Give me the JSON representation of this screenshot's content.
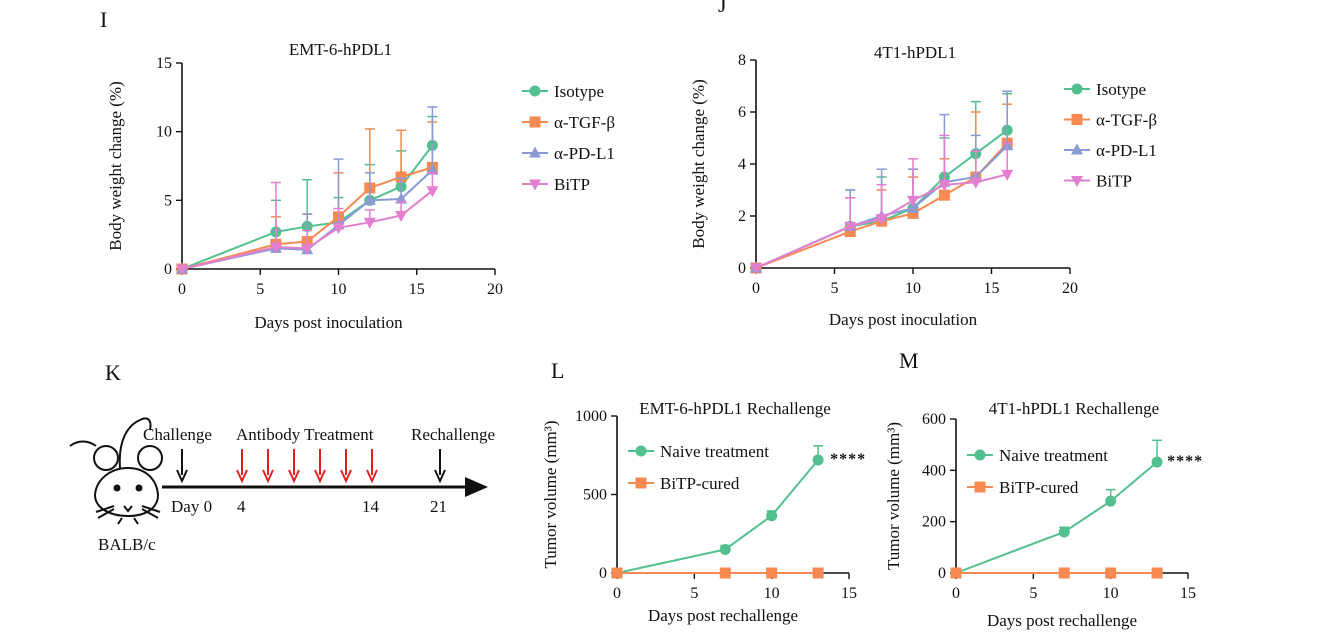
{
  "panels": {
    "I": "I",
    "J": "J",
    "K": "K",
    "L": "L",
    "M": "M"
  },
  "colors": {
    "isotype": "#52c08e",
    "tgf": "#f68a52",
    "pdl1": "#8a9ad4",
    "bitp": "#e27fcf",
    "arrow_red": "#e31e1e",
    "axis": "#111111"
  },
  "schedule": {
    "challenge_label": "Challenge",
    "treatment_label": "Antibody Treatment",
    "rechallenge_label": "Rechallenge",
    "day0_label": "Day 0",
    "day4_label": "4",
    "day14_label": "14",
    "day21_label": "21",
    "mouse_label": "BALB/c",
    "mouse_icon": "mouse-icon"
  },
  "chart_data": [
    {
      "id": "I",
      "type": "line",
      "title": "EMT-6-hPDL1",
      "xlabel": "Days post inoculation",
      "ylabel": "Body weight change (%)",
      "xlim": [
        0,
        20
      ],
      "ylim": [
        0,
        15
      ],
      "xticks": [
        0,
        5,
        10,
        15,
        20
      ],
      "yticks": [
        0,
        5,
        10,
        15
      ],
      "x": [
        0,
        6,
        8,
        10,
        12,
        14,
        16
      ],
      "series": [
        {
          "name": "Isotype",
          "color": "#52c08e",
          "marker": "circle",
          "values": [
            0,
            2.7,
            3.1,
            3.4,
            5.0,
            6.0,
            9.0
          ],
          "errors": [
            0,
            2.3,
            3.4,
            1.8,
            2.6,
            2.6,
            2.1
          ]
        },
        {
          "name": "α-TGF-β",
          "color": "#f68a52",
          "marker": "square",
          "values": [
            0,
            1.8,
            2.0,
            3.8,
            5.9,
            6.7,
            7.4
          ],
          "errors": [
            0,
            2.0,
            2.0,
            3.2,
            4.3,
            3.4,
            3.3
          ]
        },
        {
          "name": "α-PD-L1",
          "color": "#8a9ad4",
          "marker": "triangle-up",
          "values": [
            0,
            1.5,
            1.4,
            3.2,
            5.0,
            5.1,
            7.2
          ],
          "errors": [
            0,
            1.3,
            2.6,
            4.8,
            2.0,
            1.5,
            4.6
          ]
        },
        {
          "name": "BiTP",
          "color": "#e27fcf",
          "marker": "triangle-down",
          "values": [
            0,
            1.6,
            1.5,
            3.0,
            3.4,
            3.9,
            5.7
          ],
          "errors": [
            0,
            4.7,
            1.3,
            1.4,
            0.9,
            1.0,
            1.3
          ]
        }
      ]
    },
    {
      "id": "J",
      "type": "line",
      "title": "4T1-hPDL1",
      "xlabel": "Days post inoculation",
      "ylabel": "Body weight change (%)",
      "xlim": [
        0,
        20
      ],
      "ylim": [
        0,
        8
      ],
      "xticks": [
        0,
        5,
        10,
        15,
        20
      ],
      "yticks": [
        0,
        2,
        4,
        6,
        8
      ],
      "x": [
        0,
        6,
        8,
        10,
        12,
        14,
        16
      ],
      "series": [
        {
          "name": "Isotype",
          "color": "#52c08e",
          "marker": "circle",
          "values": [
            0,
            1.6,
            1.8,
            2.3,
            3.5,
            4.4,
            5.3
          ],
          "errors": [
            0,
            1.4,
            1.7,
            1.5,
            1.5,
            2.0,
            1.4
          ]
        },
        {
          "name": "α-TGF-β",
          "color": "#f68a52",
          "marker": "square",
          "values": [
            0,
            1.4,
            1.8,
            2.1,
            2.8,
            3.5,
            4.8
          ],
          "errors": [
            0,
            1.3,
            1.2,
            1.4,
            1.4,
            2.5,
            1.5
          ]
        },
        {
          "name": "α-PD-L1",
          "color": "#8a9ad4",
          "marker": "triangle-up",
          "values": [
            0,
            1.6,
            2.0,
            2.3,
            3.3,
            3.5,
            4.7
          ],
          "errors": [
            0,
            1.4,
            1.8,
            1.5,
            2.6,
            1.6,
            2.1
          ]
        },
        {
          "name": "BiTP",
          "color": "#e27fcf",
          "marker": "triangle-down",
          "values": [
            0,
            1.6,
            1.9,
            2.6,
            3.2,
            3.3,
            3.6
          ],
          "errors": [
            0,
            1.1,
            1.3,
            1.6,
            1.9,
            1.2,
            1.2
          ]
        }
      ]
    },
    {
      "id": "L",
      "type": "line",
      "title": "EMT-6-hPDL1 Rechallenge",
      "xlabel": "Days post rechallenge",
      "ylabel": "Tumor volume (mm³)",
      "xlim": [
        0,
        15
      ],
      "ylim": [
        0,
        1000
      ],
      "xticks": [
        0,
        5,
        10,
        15
      ],
      "yticks": [
        0,
        500,
        1000
      ],
      "x": [
        0,
        7,
        10,
        13
      ],
      "significance": "****",
      "series": [
        {
          "name": "Naive treatment",
          "color": "#52c08e",
          "marker": "circle",
          "values": [
            0,
            150,
            365,
            720
          ],
          "errors": [
            0,
            25,
            30,
            90
          ]
        },
        {
          "name": "BiTP-cured",
          "color": "#f68a52",
          "marker": "square",
          "values": [
            0,
            0,
            0,
            0
          ],
          "errors": [
            0,
            0,
            0,
            0
          ]
        }
      ]
    },
    {
      "id": "M",
      "type": "line",
      "title": "4T1-hPDL1 Rechallenge",
      "xlabel": "Days post rechallenge",
      "ylabel": "Tumor volume (mm³)",
      "xlim": [
        0,
        15
      ],
      "ylim": [
        0,
        600
      ],
      "xticks": [
        0,
        5,
        10,
        15
      ],
      "yticks": [
        0,
        200,
        400,
        600
      ],
      "x": [
        0,
        7,
        10,
        13
      ],
      "significance": "****",
      "series": [
        {
          "name": "Naive treatment",
          "color": "#52c08e",
          "marker": "circle",
          "values": [
            0,
            160,
            280,
            432
          ],
          "errors": [
            0,
            18,
            45,
            85
          ]
        },
        {
          "name": "BiTP-cured",
          "color": "#f68a52",
          "marker": "square",
          "values": [
            0,
            0,
            0,
            0
          ],
          "errors": [
            0,
            0,
            0,
            0
          ]
        }
      ]
    }
  ]
}
